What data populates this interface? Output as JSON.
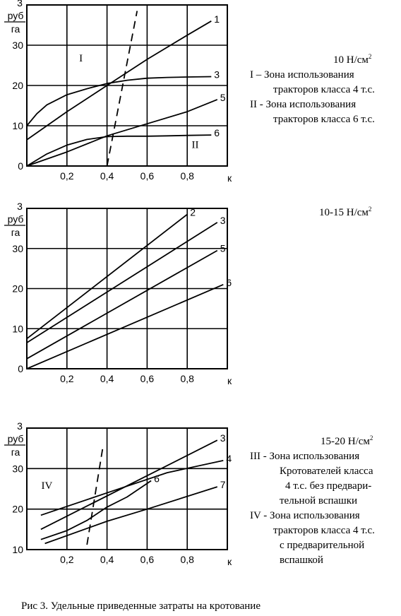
{
  "charts": [
    {
      "pressure": "10 Н/см",
      "pressure_sup": "2",
      "zones": [
        {
          "text": "I – Зона использования",
          "cont": "тракторов класса 4 т.с."
        },
        {
          "text": "II - Зона использования",
          "cont": "тракторов класса 6 т.с."
        }
      ]
    },
    {
      "pressure": "10-15 Н/см",
      "pressure_sup": "2",
      "zones": []
    },
    {
      "pressure": "15-20 Н/см",
      "pressure_sup": "2",
      "zones": [
        {
          "text": "III - Зона использования",
          "cont": "Кротователей класса",
          "cont2": "4 т.с. без предвари-",
          "cont3": "тельной вспашки"
        },
        {
          "text": "IV - Зона использования",
          "cont": "тракторов класса 4 т.с.",
          "cont2": "с предварительной",
          "cont3": "вспашкой"
        }
      ]
    }
  ],
  "chart_data": [
    {
      "type": "line",
      "xlabel": "к",
      "ylabel": "руб/га",
      "ylabel_top": "3",
      "ylabel_num": "руб",
      "ylabel_den": "га",
      "xlim": [
        0,
        1.0
      ],
      "ylim": [
        0,
        40
      ],
      "xticks": [
        "0,2",
        "0,4",
        "0,6",
        "0,8"
      ],
      "yticks": [
        "0",
        "10",
        "20",
        "30"
      ],
      "grid": true,
      "zone_marks": [
        {
          "label": "I",
          "x": 0.27,
          "y": 26
        },
        {
          "label": "II",
          "x": 0.84,
          "y": 4.5
        }
      ],
      "series": [
        {
          "name": "1",
          "style": "solid",
          "x": [
            0.0,
            0.2,
            0.4,
            0.6,
            0.8,
            0.92
          ],
          "y": [
            6.5,
            13.5,
            20.0,
            26.5,
            32.5,
            36.0
          ]
        },
        {
          "name": "3",
          "style": "solid",
          "x": [
            0.0,
            0.05,
            0.1,
            0.2,
            0.3,
            0.4,
            0.5,
            0.6,
            0.7,
            0.8,
            0.92
          ],
          "y": [
            10.0,
            13.0,
            15.2,
            17.7,
            19.2,
            20.5,
            21.3,
            21.8,
            22.0,
            22.1,
            22.2
          ]
        },
        {
          "name": "5",
          "style": "solid",
          "x": [
            0.0,
            0.2,
            0.4,
            0.6,
            0.8,
            0.95
          ],
          "y": [
            0.0,
            3.5,
            7.5,
            10.5,
            13.5,
            16.5
          ]
        },
        {
          "name": "6",
          "style": "solid",
          "x": [
            0.0,
            0.1,
            0.2,
            0.3,
            0.4,
            0.5,
            0.6,
            0.7,
            0.8,
            0.92
          ],
          "y": [
            0.0,
            3.0,
            5.2,
            6.6,
            7.3,
            7.4,
            7.4,
            7.5,
            7.6,
            7.7
          ]
        },
        {
          "name": "",
          "style": "dashed",
          "x": [
            0.4,
            0.55
          ],
          "y": [
            0.0,
            38.5
          ]
        }
      ]
    },
    {
      "type": "line",
      "xlabel": "к",
      "ylabel": "руб/га",
      "ylabel_top": "3",
      "ylabel_num": "руб",
      "ylabel_den": "га",
      "xlim": [
        0,
        1.0
      ],
      "ylim": [
        0,
        40
      ],
      "xticks": [
        "0,2",
        "0,4",
        "0,6",
        "0,8"
      ],
      "yticks": [
        "0",
        "10",
        "20",
        "30"
      ],
      "grid": true,
      "zone_marks": [],
      "series": [
        {
          "name": "2",
          "style": "solid",
          "x": [
            0.0,
            0.8
          ],
          "y": [
            7.5,
            38.5
          ]
        },
        {
          "name": "3",
          "style": "solid",
          "x": [
            0.0,
            0.95
          ],
          "y": [
            6.5,
            36.5
          ]
        },
        {
          "name": "5",
          "style": "solid",
          "x": [
            0.0,
            0.95
          ],
          "y": [
            2.5,
            29.5
          ]
        },
        {
          "name": "6",
          "style": "solid",
          "x": [
            0.0,
            0.98
          ],
          "y": [
            0.0,
            21.0
          ]
        }
      ]
    },
    {
      "type": "line",
      "xlabel": "к",
      "ylabel": "руб/га",
      "ylabel_top": "3",
      "ylabel_num": "руб",
      "ylabel_den": "га",
      "xlim": [
        0,
        1.0
      ],
      "ylim": [
        10,
        40
      ],
      "xticks": [
        "0,2",
        "0,4",
        "0,6",
        "0,8"
      ],
      "yticks": [
        "10",
        "20",
        "30"
      ],
      "grid": true,
      "zone_marks": [
        {
          "label": "IV",
          "x": 0.1,
          "y": 25
        }
      ],
      "series": [
        {
          "name": "3",
          "style": "solid",
          "x": [
            0.07,
            0.95
          ],
          "y": [
            15.0,
            37.0
          ]
        },
        {
          "name": "4",
          "style": "solid",
          "x": [
            0.07,
            0.4,
            0.7,
            0.98
          ],
          "y": [
            18.5,
            24.0,
            29.0,
            32.0
          ]
        },
        {
          "name": "6",
          "style": "solid",
          "x": [
            0.07,
            0.2,
            0.3,
            0.4,
            0.5,
            0.62
          ],
          "y": [
            12.5,
            14.7,
            17.2,
            20.5,
            23.0,
            27.0
          ]
        },
        {
          "name": "7",
          "style": "solid",
          "x": [
            0.09,
            0.4,
            0.6,
            0.95
          ],
          "y": [
            11.5,
            17.0,
            20.0,
            25.5
          ]
        },
        {
          "name": "",
          "style": "dashed",
          "x": [
            0.3,
            0.38
          ],
          "y": [
            11.2,
            35.5
          ]
        }
      ]
    }
  ],
  "caption": "Рис 3.  Удельные приведенные затраты на кротование"
}
